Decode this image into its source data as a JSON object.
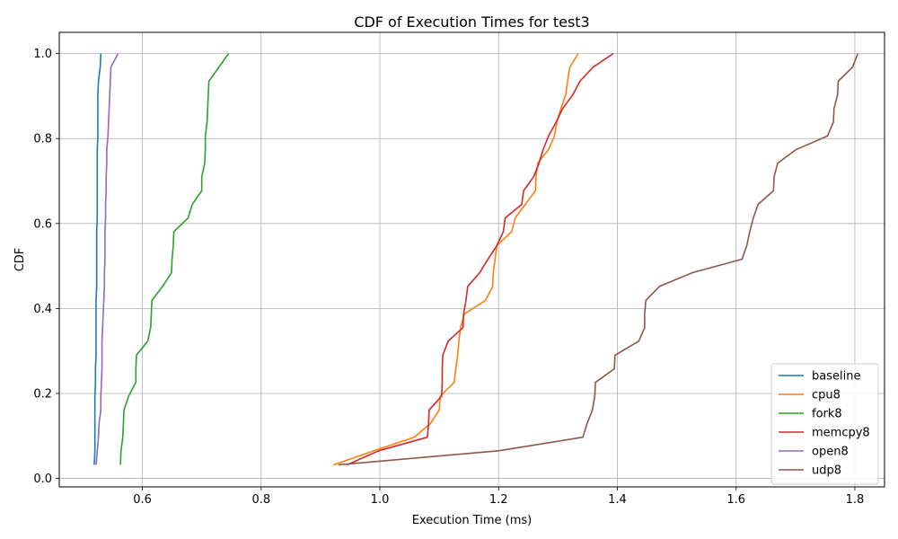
{
  "chart_data": {
    "type": "line",
    "title": "CDF of Execution Times for test3",
    "xlabel": "Execution Time (ms)",
    "ylabel": "CDF",
    "xlim": [
      0.46,
      1.85
    ],
    "ylim": [
      -0.02,
      1.05
    ],
    "xticks": [
      0.6,
      0.8,
      1.0,
      1.2,
      1.4,
      1.6,
      1.8
    ],
    "xtick_labels": [
      "0.6",
      "0.8",
      "1.0",
      "1.2",
      "1.4",
      "1.6",
      "1.8"
    ],
    "yticks": [
      0.0,
      0.2,
      0.4,
      0.6,
      0.8,
      1.0
    ],
    "ytick_labels": [
      "0.0",
      "0.2",
      "0.4",
      "0.6",
      "0.8",
      "1.0"
    ],
    "grid": true,
    "legend_position": "lower-right",
    "series": [
      {
        "name": "baseline",
        "color": "#1f77b4",
        "points": [
          [
            0.519,
            0.032
          ],
          [
            0.52,
            0.065
          ],
          [
            0.52,
            0.097
          ],
          [
            0.52,
            0.129
          ],
          [
            0.52,
            0.161
          ],
          [
            0.52,
            0.194
          ],
          [
            0.521,
            0.226
          ],
          [
            0.521,
            0.258
          ],
          [
            0.522,
            0.29
          ],
          [
            0.522,
            0.323
          ],
          [
            0.522,
            0.355
          ],
          [
            0.522,
            0.387
          ],
          [
            0.522,
            0.419
          ],
          [
            0.523,
            0.452
          ],
          [
            0.523,
            0.484
          ],
          [
            0.523,
            0.516
          ],
          [
            0.523,
            0.548
          ],
          [
            0.523,
            0.581
          ],
          [
            0.524,
            0.613
          ],
          [
            0.524,
            0.645
          ],
          [
            0.524,
            0.677
          ],
          [
            0.524,
            0.71
          ],
          [
            0.524,
            0.742
          ],
          [
            0.524,
            0.774
          ],
          [
            0.525,
            0.806
          ],
          [
            0.525,
            0.839
          ],
          [
            0.525,
            0.871
          ],
          [
            0.525,
            0.903
          ],
          [
            0.526,
            0.935
          ],
          [
            0.529,
            0.968
          ],
          [
            0.53,
            1.0
          ]
        ]
      },
      {
        "name": "cpu8",
        "color": "#ff7f0e",
        "points": [
          [
            0.922,
            0.032
          ],
          [
            0.99,
            0.065
          ],
          [
            1.058,
            0.097
          ],
          [
            1.085,
            0.129
          ],
          [
            1.1,
            0.161
          ],
          [
            1.102,
            0.194
          ],
          [
            1.125,
            0.226
          ],
          [
            1.128,
            0.258
          ],
          [
            1.131,
            0.29
          ],
          [
            1.133,
            0.323
          ],
          [
            1.136,
            0.355
          ],
          [
            1.142,
            0.387
          ],
          [
            1.178,
            0.419
          ],
          [
            1.19,
            0.452
          ],
          [
            1.191,
            0.484
          ],
          [
            1.194,
            0.516
          ],
          [
            1.197,
            0.548
          ],
          [
            1.222,
            0.581
          ],
          [
            1.228,
            0.613
          ],
          [
            1.245,
            0.645
          ],
          [
            1.262,
            0.677
          ],
          [
            1.263,
            0.71
          ],
          [
            1.266,
            0.742
          ],
          [
            1.284,
            0.774
          ],
          [
            1.294,
            0.806
          ],
          [
            1.298,
            0.839
          ],
          [
            1.305,
            0.871
          ],
          [
            1.313,
            0.903
          ],
          [
            1.316,
            0.935
          ],
          [
            1.32,
            0.968
          ],
          [
            1.334,
            1.0
          ]
        ]
      },
      {
        "name": "fork8",
        "color": "#2ca02c",
        "points": [
          [
            0.563,
            0.032
          ],
          [
            0.564,
            0.065
          ],
          [
            0.567,
            0.097
          ],
          [
            0.568,
            0.129
          ],
          [
            0.569,
            0.161
          ],
          [
            0.577,
            0.194
          ],
          [
            0.589,
            0.226
          ],
          [
            0.589,
            0.258
          ],
          [
            0.59,
            0.29
          ],
          [
            0.609,
            0.323
          ],
          [
            0.614,
            0.355
          ],
          [
            0.615,
            0.387
          ],
          [
            0.616,
            0.419
          ],
          [
            0.634,
            0.452
          ],
          [
            0.649,
            0.484
          ],
          [
            0.65,
            0.516
          ],
          [
            0.652,
            0.548
          ],
          [
            0.653,
            0.581
          ],
          [
            0.677,
            0.613
          ],
          [
            0.684,
            0.645
          ],
          [
            0.7,
            0.677
          ],
          [
            0.7,
            0.71
          ],
          [
            0.705,
            0.742
          ],
          [
            0.706,
            0.774
          ],
          [
            0.706,
            0.806
          ],
          [
            0.709,
            0.839
          ],
          [
            0.71,
            0.871
          ],
          [
            0.711,
            0.903
          ],
          [
            0.712,
            0.935
          ],
          [
            0.729,
            0.968
          ],
          [
            0.745,
            1.0
          ]
        ]
      },
      {
        "name": "memcpy8",
        "color": "#d62728",
        "points": [
          [
            0.945,
            0.032
          ],
          [
            0.998,
            0.065
          ],
          [
            1.08,
            0.097
          ],
          [
            1.082,
            0.129
          ],
          [
            1.083,
            0.161
          ],
          [
            1.104,
            0.194
          ],
          [
            1.105,
            0.226
          ],
          [
            1.105,
            0.258
          ],
          [
            1.106,
            0.29
          ],
          [
            1.115,
            0.323
          ],
          [
            1.14,
            0.355
          ],
          [
            1.141,
            0.387
          ],
          [
            1.145,
            0.419
          ],
          [
            1.148,
            0.452
          ],
          [
            1.168,
            0.484
          ],
          [
            1.182,
            0.516
          ],
          [
            1.197,
            0.548
          ],
          [
            1.208,
            0.581
          ],
          [
            1.211,
            0.613
          ],
          [
            1.239,
            0.645
          ],
          [
            1.242,
            0.677
          ],
          [
            1.259,
            0.71
          ],
          [
            1.268,
            0.742
          ],
          [
            1.275,
            0.774
          ],
          [
            1.284,
            0.806
          ],
          [
            1.297,
            0.839
          ],
          [
            1.308,
            0.871
          ],
          [
            1.325,
            0.903
          ],
          [
            1.337,
            0.935
          ],
          [
            1.359,
            0.968
          ],
          [
            1.393,
            1.0
          ]
        ]
      },
      {
        "name": "open8",
        "color": "#9467bd",
        "points": [
          [
            0.522,
            0.032
          ],
          [
            0.524,
            0.065
          ],
          [
            0.526,
            0.097
          ],
          [
            0.527,
            0.129
          ],
          [
            0.53,
            0.161
          ],
          [
            0.53,
            0.194
          ],
          [
            0.531,
            0.226
          ],
          [
            0.532,
            0.258
          ],
          [
            0.532,
            0.29
          ],
          [
            0.532,
            0.323
          ],
          [
            0.533,
            0.355
          ],
          [
            0.534,
            0.387
          ],
          [
            0.535,
            0.419
          ],
          [
            0.536,
            0.452
          ],
          [
            0.536,
            0.484
          ],
          [
            0.537,
            0.516
          ],
          [
            0.537,
            0.548
          ],
          [
            0.537,
            0.581
          ],
          [
            0.538,
            0.613
          ],
          [
            0.538,
            0.645
          ],
          [
            0.539,
            0.677
          ],
          [
            0.539,
            0.71
          ],
          [
            0.54,
            0.742
          ],
          [
            0.54,
            0.774
          ],
          [
            0.542,
            0.806
          ],
          [
            0.543,
            0.839
          ],
          [
            0.544,
            0.871
          ],
          [
            0.545,
            0.903
          ],
          [
            0.546,
            0.935
          ],
          [
            0.547,
            0.968
          ],
          [
            0.559,
            1.0
          ]
        ]
      },
      {
        "name": "udp8",
        "color": "#8c564b",
        "points": [
          [
            0.93,
            0.032
          ],
          [
            1.2,
            0.065
          ],
          [
            1.342,
            0.097
          ],
          [
            1.349,
            0.129
          ],
          [
            1.358,
            0.161
          ],
          [
            1.362,
            0.194
          ],
          [
            1.363,
            0.226
          ],
          [
            1.395,
            0.258
          ],
          [
            1.396,
            0.29
          ],
          [
            1.436,
            0.323
          ],
          [
            1.446,
            0.355
          ],
          [
            1.446,
            0.387
          ],
          [
            1.448,
            0.419
          ],
          [
            1.471,
            0.452
          ],
          [
            1.526,
            0.484
          ],
          [
            1.61,
            0.516
          ],
          [
            1.618,
            0.548
          ],
          [
            1.623,
            0.581
          ],
          [
            1.629,
            0.613
          ],
          [
            1.637,
            0.645
          ],
          [
            1.663,
            0.677
          ],
          [
            1.664,
            0.71
          ],
          [
            1.67,
            0.742
          ],
          [
            1.701,
            0.774
          ],
          [
            1.754,
            0.806
          ],
          [
            1.764,
            0.839
          ],
          [
            1.765,
            0.871
          ],
          [
            1.771,
            0.903
          ],
          [
            1.772,
            0.935
          ],
          [
            1.796,
            0.968
          ],
          [
            1.805,
            1.0
          ]
        ]
      }
    ]
  }
}
